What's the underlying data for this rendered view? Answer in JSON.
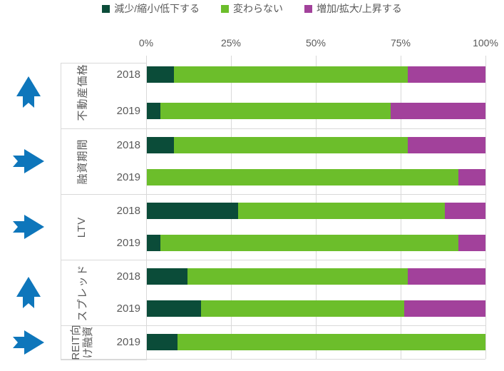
{
  "legend": {
    "items": [
      {
        "label": "減少/縮小/低下する",
        "color": "#0b4c39"
      },
      {
        "label": "変わらない",
        "color": "#6cbe2b"
      },
      {
        "label": "増加/拡大/上昇する",
        "color": "#a2419b"
      }
    ]
  },
  "axis": {
    "tick_labels": [
      "0%",
      "25%",
      "50%",
      "75%",
      "100%"
    ]
  },
  "chart_data": {
    "type": "bar",
    "orientation": "horizontal",
    "stacked": true,
    "unit": "%",
    "xlim": [
      0,
      100
    ],
    "grid": "vertical-25pct",
    "legend_position": "top-center",
    "series_names": [
      "減少/縮小/低下する",
      "変わらない",
      "増加/拡大/上昇する"
    ],
    "colors": {
      "decrease": "#0b4c39",
      "unchanged": "#6cbe2b",
      "increase": "#a2419b",
      "trend_arrow": "#0e76bb"
    },
    "groups": [
      {
        "category": "不動産価格",
        "trend_arrow": "up",
        "rows": [
          {
            "year": "2018",
            "values": [
              8,
              69,
              23
            ]
          },
          {
            "year": "2019",
            "values": [
              4,
              68,
              28
            ]
          }
        ]
      },
      {
        "category": "融資期間",
        "trend_arrow": "right",
        "rows": [
          {
            "year": "2018",
            "values": [
              8,
              69,
              23
            ]
          },
          {
            "year": "2019",
            "values": [
              0,
              92,
              8
            ]
          }
        ]
      },
      {
        "category": "LTV",
        "trend_arrow": "right",
        "rows": [
          {
            "year": "2018",
            "values": [
              27,
              61,
              12
            ]
          },
          {
            "year": "2019",
            "values": [
              4,
              88,
              8
            ]
          }
        ]
      },
      {
        "category": "スプレッド",
        "trend_arrow": "up",
        "rows": [
          {
            "year": "2018",
            "values": [
              12,
              65,
              23
            ]
          },
          {
            "year": "2019",
            "values": [
              16,
              60,
              24
            ]
          }
        ]
      },
      {
        "category": "REIT向け融資",
        "trend_arrow": "right",
        "rows": [
          {
            "year": "2019",
            "values": [
              9,
              91,
              0
            ]
          }
        ]
      }
    ]
  }
}
